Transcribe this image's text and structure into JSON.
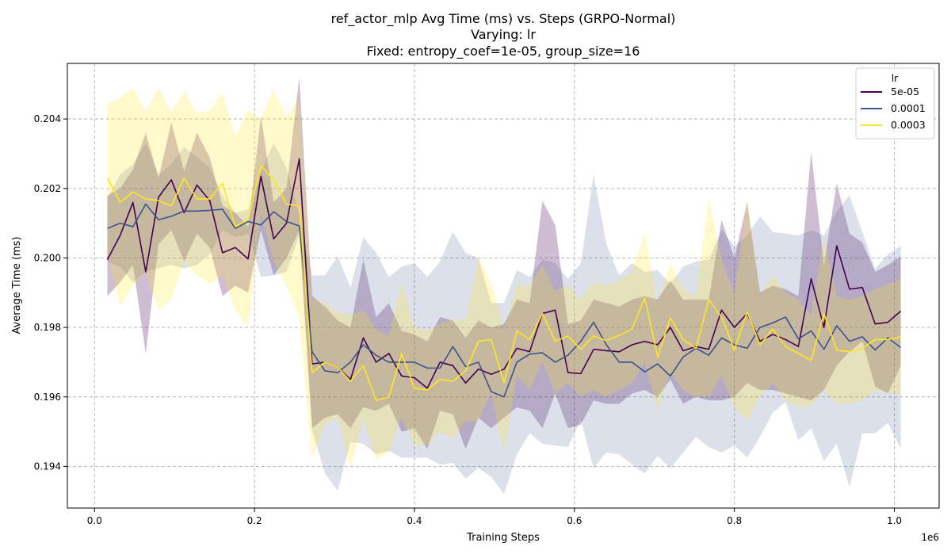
{
  "chart_data": {
    "type": "line",
    "title_lines": [
      "ref_actor_mlp Avg Time (ms) vs. Steps (GRPO-Normal)",
      "Varying: lr",
      "Fixed: entropy_coef=1e-05, group_size=16"
    ],
    "xlabel": "Training Steps",
    "ylabel": "Average Time (ms)",
    "x_offset_text": "1e6",
    "xlim": [
      -0.034,
      1.056
    ],
    "ylim": [
      0.1928,
      0.2056
    ],
    "x_ticks": [
      0.0,
      0.2,
      0.4,
      0.6,
      0.8,
      1.0
    ],
    "x_tick_labels": [
      "0.0",
      "0.2",
      "0.4",
      "0.6",
      "0.8",
      "1.0"
    ],
    "y_ticks": [
      0.194,
      0.196,
      0.198,
      0.2,
      0.202,
      0.204
    ],
    "y_tick_labels": [
      "0.194",
      "0.196",
      "0.198",
      "0.200",
      "0.202",
      "0.204"
    ],
    "grid": true,
    "legend_title": "lr",
    "legend_position": "top-right",
    "x": [
      0.016,
      0.032,
      0.048,
      0.064,
      0.08,
      0.096,
      0.112,
      0.128,
      0.144,
      0.16,
      0.176,
      0.192,
      0.208,
      0.224,
      0.24,
      0.256,
      0.272,
      0.288,
      0.304,
      0.32,
      0.336,
      0.352,
      0.368,
      0.384,
      0.4,
      0.416,
      0.432,
      0.448,
      0.464,
      0.48,
      0.496,
      0.512,
      0.528,
      0.544,
      0.56,
      0.576,
      0.592,
      0.608,
      0.624,
      0.64,
      0.656,
      0.672,
      0.688,
      0.704,
      0.72,
      0.736,
      0.752,
      0.768,
      0.784,
      0.8,
      0.816,
      0.832,
      0.848,
      0.864,
      0.88,
      0.896,
      0.912,
      0.928,
      0.944,
      0.96,
      0.976,
      0.992,
      1.008
    ],
    "series": [
      {
        "name": "5e-05",
        "color": "#440154",
        "values": [
          0.19995,
          0.20065,
          0.2016,
          0.1996,
          0.20175,
          0.20225,
          0.2013,
          0.2021,
          0.20165,
          0.20015,
          0.2003,
          0.19997,
          0.20235,
          0.20055,
          0.201,
          0.20285,
          0.19695,
          0.197,
          0.19685,
          0.1965,
          0.1977,
          0.197,
          0.19725,
          0.1966,
          0.19655,
          0.19625,
          0.197,
          0.1969,
          0.1964,
          0.1968,
          0.19665,
          0.1968,
          0.1974,
          0.1973,
          0.1984,
          0.1985,
          0.1967,
          0.19667,
          0.19737,
          0.19733,
          0.1973,
          0.1975,
          0.1976,
          0.1975,
          0.198,
          0.19733,
          0.19745,
          0.19737,
          0.1985,
          0.198,
          0.1984,
          0.1976,
          0.1978,
          0.19765,
          0.19745,
          0.1994,
          0.198,
          0.20035,
          0.1991,
          0.19915,
          0.1981,
          0.19815,
          0.19847
        ],
        "upper": [
          0.2018,
          0.202,
          0.20255,
          0.2036,
          0.2023,
          0.2039,
          0.2025,
          0.2036,
          0.2029,
          0.2015,
          0.2013,
          0.2009,
          0.2041,
          0.2016,
          0.202,
          0.2052,
          0.1989,
          0.1986,
          0.1982,
          0.198,
          0.19995,
          0.1983,
          0.1987,
          0.1979,
          0.1978,
          0.1976,
          0.1983,
          0.1982,
          0.1977,
          0.1982,
          0.198,
          0.1981,
          0.1988,
          0.1987,
          0.20165,
          0.20095,
          0.1981,
          0.1982,
          0.1988,
          0.1987,
          0.1986,
          0.1988,
          0.1989,
          0.1988,
          0.19935,
          0.1988,
          0.1988,
          0.1988,
          0.2011,
          0.2,
          0.2016,
          0.199,
          0.1992,
          0.1991,
          0.1989,
          0.20305,
          0.1998,
          0.20215,
          0.2007,
          0.20045,
          0.1996,
          0.1998,
          0.20005
        ],
        "lower": [
          0.1989,
          0.1993,
          0.1998,
          0.19725,
          0.2004,
          0.2008,
          0.1999,
          0.2007,
          0.2003,
          0.1989,
          0.1992,
          0.199,
          0.2008,
          0.1995,
          0.2,
          0.2008,
          0.1951,
          0.1954,
          0.1955,
          0.1951,
          0.1957,
          0.1956,
          0.1958,
          0.195,
          0.1951,
          0.1945,
          0.1956,
          0.1955,
          0.1945,
          0.1954,
          0.1951,
          0.1954,
          0.1957,
          0.1956,
          0.1951,
          0.1961,
          0.1951,
          0.1952,
          0.1959,
          0.1958,
          0.1958,
          0.1961,
          0.1962,
          0.196,
          0.1965,
          0.1958,
          0.196,
          0.1959,
          0.1959,
          0.196,
          0.1964,
          0.1962,
          0.1962,
          0.1961,
          0.196,
          0.1959,
          0.1962,
          0.1969,
          0.1973,
          0.1976,
          0.1963,
          0.1961,
          0.1969
        ]
      },
      {
        "name": "0.0001",
        "color": "#3b528b",
        "values": [
          0.20085,
          0.201,
          0.2009,
          0.20155,
          0.2011,
          0.2012,
          0.20135,
          0.20135,
          0.20137,
          0.2014,
          0.20085,
          0.20105,
          0.20095,
          0.20133,
          0.20105,
          0.20092,
          0.1973,
          0.19675,
          0.1967,
          0.197,
          0.1975,
          0.1972,
          0.197,
          0.197,
          0.197,
          0.19683,
          0.19683,
          0.19745,
          0.19687,
          0.197,
          0.19615,
          0.196,
          0.197,
          0.19723,
          0.19727,
          0.197,
          0.1972,
          0.1976,
          0.19815,
          0.1975,
          0.197,
          0.197,
          0.19672,
          0.19695,
          0.1966,
          0.19715,
          0.1974,
          0.1972,
          0.1977,
          0.1975,
          0.1974,
          0.198,
          0.19813,
          0.1983,
          0.19767,
          0.1979,
          0.19737,
          0.19805,
          0.1976,
          0.19773,
          0.19735,
          0.1977,
          0.19742
        ],
        "upper": [
          0.2017,
          0.2024,
          0.2027,
          0.2033,
          0.2024,
          0.2027,
          0.2032,
          0.2029,
          0.2026,
          0.2018,
          0.2013,
          0.2014,
          0.2025,
          0.2033,
          0.2026,
          0.2012,
          0.1995,
          0.1995,
          0.20005,
          0.19915,
          0.2006,
          0.20015,
          0.19945,
          0.19975,
          0.19985,
          0.19945,
          0.1999,
          0.20075,
          0.20015,
          0.2,
          0.1987,
          0.1987,
          0.19965,
          0.19945,
          0.19995,
          0.19985,
          0.1994,
          0.19985,
          0.2024,
          0.2004,
          0.1995,
          0.19985,
          0.1996,
          0.19965,
          0.19925,
          0.19975,
          0.1999,
          0.19995,
          0.2008,
          0.20035,
          0.20065,
          0.2012,
          0.20075,
          0.2007,
          0.20065,
          0.2008,
          0.20065,
          0.20135,
          0.2018,
          0.20075,
          0.1997,
          0.2001,
          0.20035
        ],
        "lower": [
          0.1999,
          0.19975,
          0.1993,
          0.1996,
          0.1997,
          0.1998,
          0.1997,
          0.1998,
          0.2001,
          0.2008,
          0.2006,
          0.2007,
          0.19945,
          0.1995,
          0.1996,
          0.20065,
          0.19505,
          0.1938,
          0.1933,
          0.1947,
          0.19465,
          0.19435,
          0.19445,
          0.19425,
          0.19425,
          0.19425,
          0.19405,
          0.1941,
          0.19365,
          0.19395,
          0.1937,
          0.1932,
          0.19435,
          0.19495,
          0.19465,
          0.1946,
          0.19455,
          0.19535,
          0.19395,
          0.1944,
          0.19435,
          0.19405,
          0.1938,
          0.1943,
          0.19395,
          0.1944,
          0.19485,
          0.19455,
          0.1944,
          0.1946,
          0.19425,
          0.19485,
          0.19555,
          0.19585,
          0.19475,
          0.1951,
          0.19415,
          0.19465,
          0.1934,
          0.19495,
          0.19495,
          0.19525,
          0.1945
        ]
      },
      {
        "name": "0.0003",
        "color": "#fde725",
        "values": [
          0.2023,
          0.2016,
          0.2019,
          0.2017,
          0.20165,
          0.2015,
          0.2023,
          0.2017,
          0.2017,
          0.20215,
          0.2009,
          0.2011,
          0.20265,
          0.20225,
          0.20155,
          0.2015,
          0.1967,
          0.197,
          0.19685,
          0.19645,
          0.1969,
          0.1959,
          0.196,
          0.19725,
          0.19625,
          0.1962,
          0.1965,
          0.19645,
          0.19675,
          0.1976,
          0.19765,
          0.1964,
          0.1979,
          0.19765,
          0.1984,
          0.1976,
          0.19775,
          0.19737,
          0.19775,
          0.19762,
          0.19777,
          0.19795,
          0.19885,
          0.19715,
          0.19827,
          0.19765,
          0.1974,
          0.1988,
          0.1983,
          0.19735,
          0.19845,
          0.1975,
          0.19795,
          0.19745,
          0.19725,
          0.19705,
          0.1984,
          0.19735,
          0.1973,
          0.1974,
          0.19765,
          0.19765,
          0.19773
        ],
        "upper": [
          0.20445,
          0.2046,
          0.2049,
          0.2042,
          0.2049,
          0.2042,
          0.2048,
          0.20415,
          0.20425,
          0.20475,
          0.2035,
          0.20425,
          0.204,
          0.20485,
          0.20405,
          0.2046,
          0.1988,
          0.1987,
          0.19845,
          0.19835,
          0.1985,
          0.19795,
          0.19775,
          0.1993,
          0.198,
          0.1979,
          0.1981,
          0.19825,
          0.1982,
          0.2,
          0.1993,
          0.19795,
          0.1992,
          0.1992,
          0.1998,
          0.19905,
          0.1992,
          0.1988,
          0.1993,
          0.1992,
          0.19935,
          0.1996,
          0.20075,
          0.1987,
          0.19985,
          0.1991,
          0.1989,
          0.2017,
          0.2,
          0.19895,
          0.2017,
          0.1989,
          0.1995,
          0.199,
          0.1988,
          0.19835,
          0.2006,
          0.1989,
          0.1988,
          0.1989,
          0.1991,
          0.19925,
          0.1994
        ],
        "lower": [
          0.20015,
          0.1986,
          0.1992,
          0.1996,
          0.1985,
          0.1988,
          0.1999,
          0.1995,
          0.19925,
          0.1995,
          0.1985,
          0.198,
          0.2013,
          0.1999,
          0.1992,
          0.1983,
          0.1942,
          0.1952,
          0.1954,
          0.19395,
          0.1954,
          0.1942,
          0.1944,
          0.1954,
          0.1946,
          0.1946,
          0.195,
          0.1948,
          0.1953,
          0.1953,
          0.1961,
          0.1944,
          0.1966,
          0.1962,
          0.197,
          0.1961,
          0.1964,
          0.196,
          0.1962,
          0.196,
          0.1962,
          0.1964,
          0.197,
          0.1956,
          0.1967,
          0.1962,
          0.196,
          0.196,
          0.1966,
          0.1957,
          0.1953,
          0.196,
          0.1964,
          0.1959,
          0.1957,
          0.19575,
          0.1962,
          0.1958,
          0.1958,
          0.1959,
          0.1962,
          0.1961,
          0.1961
        ]
      }
    ]
  }
}
